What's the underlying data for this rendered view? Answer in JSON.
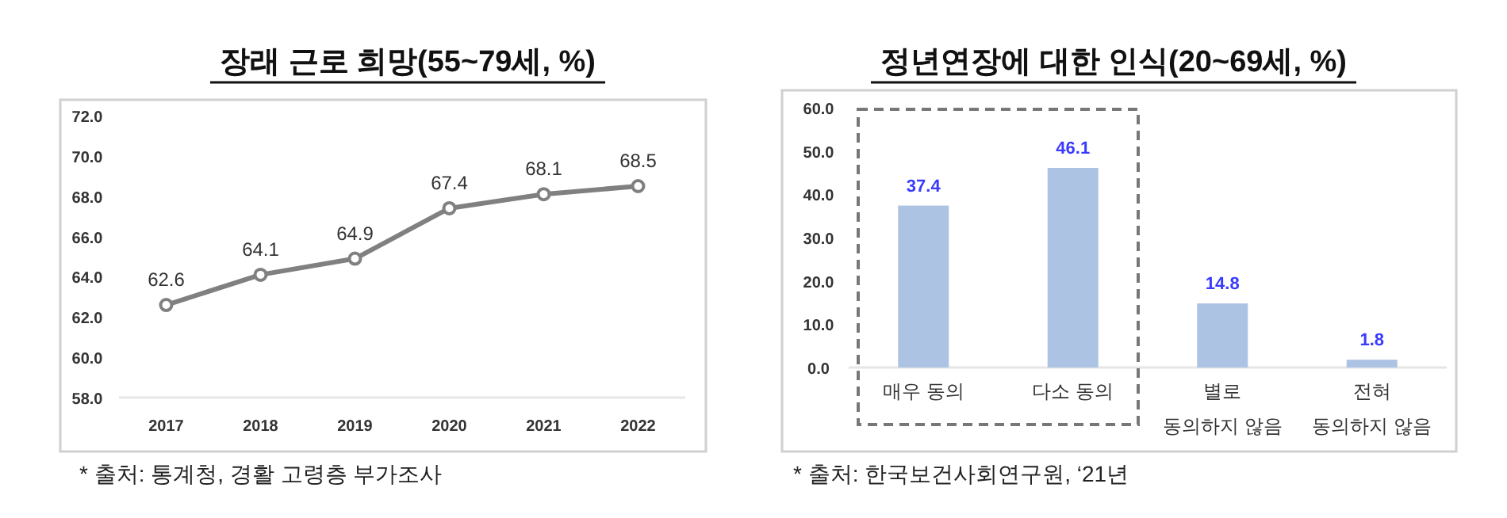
{
  "chart_data": [
    {
      "type": "line",
      "title": "장래 근로 희망(55~79세, %)",
      "categories": [
        "2017",
        "2018",
        "2019",
        "2020",
        "2021",
        "2022"
      ],
      "values": [
        62.6,
        64.1,
        64.9,
        67.4,
        68.1,
        68.5
      ],
      "color": "#808080",
      "marker": "circle",
      "data_labels": true,
      "grid": false,
      "ylim": [
        58,
        72
      ],
      "yticks": [
        {
          "value": 58,
          "label": "58.0"
        },
        {
          "value": 60,
          "label": "60.0"
        },
        {
          "value": 62,
          "label": "62.0"
        },
        {
          "value": 64,
          "label": "64.0"
        },
        {
          "value": 66,
          "label": "66.0"
        },
        {
          "value": 68,
          "label": "68.0"
        },
        {
          "value": 70,
          "label": "70.0"
        },
        {
          "value": 72,
          "label": "72.0"
        }
      ],
      "annotations": [
        "* 출처: 통계청, 경활 고령층 부가조사"
      ]
    },
    {
      "type": "bar",
      "title": "정년연장에 대한 인식(20~69세, %)",
      "categories": [
        "매우 동의",
        "다소 동의",
        "별로\n동의하지 않음",
        "전혀\n동의하지 않음"
      ],
      "values": [
        37.4,
        46.1,
        14.8,
        1.8
      ],
      "color": "#adc3e4",
      "data_labels": true,
      "grid": false,
      "ylim": [
        0,
        60
      ],
      "yticks": [
        {
          "value": 0,
          "label": "0.0"
        },
        {
          "value": 10,
          "label": "10.0"
        },
        {
          "value": 20,
          "label": "20.0"
        },
        {
          "value": 30,
          "label": "30.0"
        },
        {
          "value": 40,
          "label": "40.0"
        },
        {
          "value": 50,
          "label": "50.0"
        },
        {
          "value": 60,
          "label": "60.0"
        }
      ],
      "annotations": [
        "* 출처: 한국보건사회연구원, ‘21년"
      ]
    }
  ]
}
